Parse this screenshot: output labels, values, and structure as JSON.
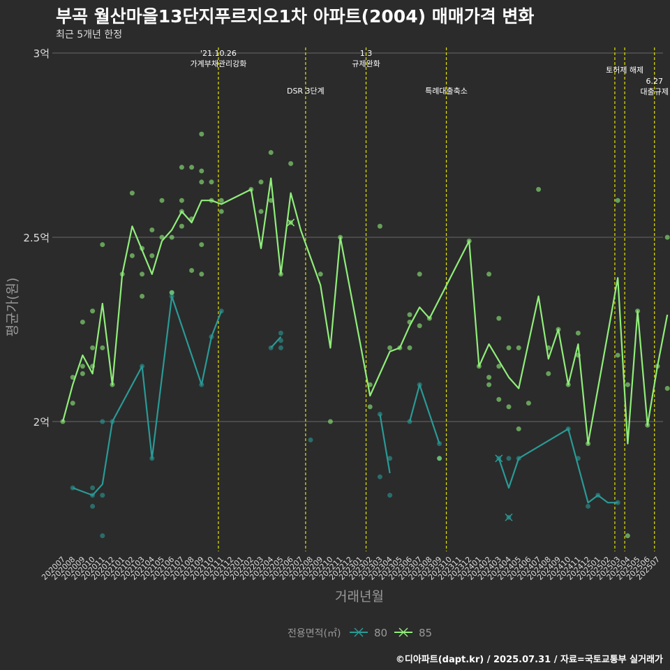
{
  "title": "부곡 월산마을13단지푸르지오1차 아파트(2004) 매매가격 변화",
  "subtitle": "최근 5개년 한정",
  "caption": "©디아파트(dapt.kr) / 2025.07.31 / 자료=국토교통부 실거래가",
  "chart_data": {
    "type": "line",
    "title": "부곡 월산마을13단지푸르지오1차 아파트(2004) 매매가격 변화",
    "subtitle": "최근 5개년 한정",
    "xlabel": "거래년월",
    "ylabel": "평균가(원)",
    "ylim": [
      1.65,
      3.0
    ],
    "y_ticks": [
      {
        "value": 2.0,
        "label": "2억"
      },
      {
        "value": 2.5,
        "label": "2.5억"
      },
      {
        "value": 3.0,
        "label": "3억"
      }
    ],
    "categories": [
      "202007",
      "202008",
      "202009",
      "202010",
      "202011",
      "202012",
      "202101",
      "202102",
      "202103",
      "202104",
      "202105",
      "202106",
      "202107",
      "202108",
      "202109",
      "202110",
      "202111",
      "202112",
      "202201",
      "202202",
      "202203",
      "202204",
      "202205",
      "202206",
      "202207",
      "202208",
      "202209",
      "202210",
      "202211",
      "202212",
      "202301",
      "202302",
      "202303",
      "202304",
      "202305",
      "202306",
      "202307",
      "202308",
      "202309",
      "202310",
      "202311",
      "202312",
      "202401",
      "202402",
      "202403",
      "202404",
      "202405",
      "202406",
      "202407",
      "202408",
      "202409",
      "202410",
      "202411",
      "202412",
      "202501",
      "202502",
      "202503",
      "202504",
      "202505",
      "202506",
      "202507"
    ],
    "x_range": [
      0,
      60
    ],
    "legend": {
      "title": "전용면적(㎡)",
      "position": "bottom"
    },
    "grid": true,
    "series": [
      {
        "name": "80",
        "color": "#2a9a96",
        "line": [
          [
            [
              1,
              1.82
            ],
            [
              3,
              1.8
            ],
            [
              4,
              1.83
            ],
            [
              5,
              2.0
            ],
            [
              8,
              2.15
            ],
            [
              9,
              1.9
            ],
            [
              11,
              2.34
            ],
            [
              14,
              2.1
            ],
            [
              15,
              2.23
            ],
            [
              16,
              2.3
            ]
          ],
          [
            [
              21,
              2.2
            ],
            [
              22,
              2.23
            ]
          ],
          [
            [
              32,
              2.02
            ],
            [
              33,
              1.86
            ]
          ],
          [
            [
              35,
              2.0
            ],
            [
              36,
              2.1
            ],
            [
              38,
              1.94
            ]
          ],
          [
            [
              44,
              1.9
            ],
            [
              45,
              1.82
            ],
            [
              46,
              1.9
            ],
            [
              51,
              1.98
            ],
            [
              53,
              1.78
            ],
            [
              54,
              1.8
            ],
            [
              55,
              1.78
            ],
            [
              56,
              1.78
            ]
          ]
        ],
        "points": [
          [
            1,
            1.82
          ],
          [
            3,
            1.8
          ],
          [
            3,
            1.82
          ],
          [
            3,
            1.77
          ],
          [
            4,
            1.8
          ],
          [
            4,
            1.69
          ],
          [
            4,
            2.0
          ],
          [
            5,
            2.0
          ],
          [
            8,
            2.15
          ],
          [
            9,
            1.9
          ],
          [
            11,
            2.35
          ],
          [
            11,
            2.34
          ],
          [
            14,
            2.1
          ],
          [
            15,
            2.23
          ],
          [
            16,
            2.3
          ],
          [
            21,
            2.2
          ],
          [
            22,
            2.22
          ],
          [
            22,
            2.2
          ],
          [
            22,
            2.24
          ],
          [
            25,
            1.95
          ],
          [
            32,
            2.02
          ],
          [
            32,
            1.85
          ],
          [
            33,
            1.9
          ],
          [
            33,
            1.8
          ],
          [
            35,
            2.0
          ],
          [
            36,
            2.1
          ],
          [
            38,
            1.9
          ],
          [
            38,
            1.94
          ],
          [
            44,
            1.9
          ],
          [
            45,
            1.9
          ],
          [
            45,
            1.74
          ],
          [
            46,
            1.9
          ],
          [
            51,
            1.98
          ],
          [
            52,
            1.9
          ],
          [
            53,
            1.77
          ],
          [
            54,
            1.8
          ],
          [
            56,
            1.78
          ]
        ],
        "cross_points": [
          [
            44,
            1.9
          ],
          [
            45,
            1.74
          ]
        ]
      },
      {
        "name": "85",
        "color": "#90ee7a",
        "line": [
          [
            [
              0,
              2.0
            ],
            [
              1,
              2.1
            ],
            [
              2,
              2.18
            ],
            [
              3,
              2.13
            ],
            [
              4,
              2.32
            ],
            [
              5,
              2.1
            ],
            [
              6,
              2.4
            ],
            [
              7,
              2.53
            ],
            [
              9,
              2.4
            ],
            [
              10,
              2.49
            ],
            [
              11,
              2.52
            ],
            [
              12,
              2.57
            ],
            [
              13,
              2.54
            ],
            [
              14,
              2.6
            ],
            [
              15,
              2.6
            ],
            [
              16,
              2.59
            ],
            [
              19,
              2.63
            ],
            [
              20,
              2.47
            ],
            [
              21,
              2.66
            ],
            [
              22,
              2.4
            ],
            [
              23,
              2.62
            ],
            [
              24,
              2.52
            ],
            [
              26,
              2.37
            ],
            [
              27,
              2.2
            ],
            [
              28,
              2.5
            ],
            [
              31,
              2.07
            ],
            [
              33,
              2.19
            ],
            [
              34,
              2.2
            ],
            [
              35,
              2.26
            ],
            [
              36,
              2.31
            ],
            [
              37,
              2.28
            ],
            [
              41,
              2.49
            ],
            [
              42,
              2.15
            ],
            [
              43,
              2.21
            ],
            [
              45,
              2.12
            ],
            [
              46,
              2.09
            ],
            [
              48,
              2.34
            ],
            [
              49,
              2.17
            ],
            [
              50,
              2.25
            ],
            [
              51,
              2.1
            ],
            [
              52,
              2.21
            ],
            [
              53,
              1.94
            ],
            [
              56,
              2.39
            ],
            [
              57,
              1.94
            ],
            [
              58,
              2.3
            ],
            [
              59,
              1.99
            ],
            [
              60,
              2.15
            ],
            [
              61,
              2.29
            ]
          ]
        ],
        "points": [
          [
            0,
            2.0
          ],
          [
            1,
            2.12
          ],
          [
            1,
            2.05
          ],
          [
            2,
            2.27
          ],
          [
            2,
            2.15
          ],
          [
            2,
            2.13
          ],
          [
            3,
            2.3
          ],
          [
            3,
            2.2
          ],
          [
            3,
            2.15
          ],
          [
            4,
            2.48
          ],
          [
            4,
            2.2
          ],
          [
            5,
            2.1
          ],
          [
            6,
            2.4
          ],
          [
            7,
            2.62
          ],
          [
            7,
            2.45
          ],
          [
            8,
            2.47
          ],
          [
            8,
            2.4
          ],
          [
            8,
            2.34
          ],
          [
            9,
            2.52
          ],
          [
            9,
            2.45
          ],
          [
            10,
            2.6
          ],
          [
            10,
            2.5
          ],
          [
            11,
            2.5
          ],
          [
            11,
            2.35
          ],
          [
            12,
            2.69
          ],
          [
            12,
            2.6
          ],
          [
            12,
            2.53
          ],
          [
            12,
            2.57
          ],
          [
            13,
            2.69
          ],
          [
            13,
            2.55
          ],
          [
            13,
            2.41
          ],
          [
            14,
            2.78
          ],
          [
            14,
            2.68
          ],
          [
            14,
            2.65
          ],
          [
            14,
            2.48
          ],
          [
            14,
            2.4
          ],
          [
            15,
            2.65
          ],
          [
            15,
            2.6
          ],
          [
            16,
            2.6
          ],
          [
            16,
            2.57
          ],
          [
            19,
            2.63
          ],
          [
            20,
            2.65
          ],
          [
            20,
            2.57
          ],
          [
            21,
            2.73
          ],
          [
            21,
            2.6
          ],
          [
            22,
            2.4
          ],
          [
            23,
            2.7
          ],
          [
            23,
            2.54
          ],
          [
            26,
            2.4
          ],
          [
            27,
            2.0
          ],
          [
            28,
            2.5
          ],
          [
            31,
            2.1
          ],
          [
            31,
            2.04
          ],
          [
            32,
            2.53
          ],
          [
            33,
            2.2
          ],
          [
            34,
            2.2
          ],
          [
            35,
            2.29
          ],
          [
            35,
            2.27
          ],
          [
            35,
            2.2
          ],
          [
            36,
            2.4
          ],
          [
            36,
            2.26
          ],
          [
            37,
            2.28
          ],
          [
            38,
            1.9
          ],
          [
            41,
            2.49
          ],
          [
            42,
            2.15
          ],
          [
            43,
            2.4
          ],
          [
            43,
            2.12
          ],
          [
            43,
            2.1
          ],
          [
            44,
            2.28
          ],
          [
            44,
            2.15
          ],
          [
            44,
            2.06
          ],
          [
            45,
            2.2
          ],
          [
            45,
            2.04
          ],
          [
            46,
            2.2
          ],
          [
            46,
            1.98
          ],
          [
            47,
            2.05
          ],
          [
            48,
            2.63
          ],
          [
            49,
            2.2
          ],
          [
            49,
            2.13
          ],
          [
            50,
            2.25
          ],
          [
            51,
            2.1
          ],
          [
            52,
            2.24
          ],
          [
            52,
            2.18
          ],
          [
            53,
            1.94
          ],
          [
            56,
            2.6
          ],
          [
            56,
            2.18
          ],
          [
            57,
            2.1
          ],
          [
            57,
            1.69
          ],
          [
            58,
            2.3
          ],
          [
            59,
            1.99
          ],
          [
            60,
            2.15
          ],
          [
            61,
            2.5
          ],
          [
            61,
            2.09
          ]
        ],
        "cross_points": [
          [
            23,
            2.54
          ]
        ]
      }
    ],
    "annotations": [
      {
        "x": 15.7,
        "lines": [
          "'21.10.26",
          "가계부채관리강화"
        ],
        "level": 0
      },
      {
        "x": 24.5,
        "lines": [
          "DSR 3단계"
        ],
        "level": 1
      },
      {
        "x": 30.6,
        "lines": [
          "1.3",
          "규제완화"
        ],
        "level": 0
      },
      {
        "x": 38.7,
        "lines": [
          "특례대출축소"
        ],
        "level": 1
      },
      {
        "x": 55.7,
        "lines": [],
        "level": 0
      },
      {
        "x": 56.7,
        "lines": [
          "토허제 해제"
        ],
        "level": 0
      },
      {
        "x": 59.7,
        "lines": [
          "6.27",
          "대출규제"
        ],
        "level": 1
      }
    ]
  }
}
